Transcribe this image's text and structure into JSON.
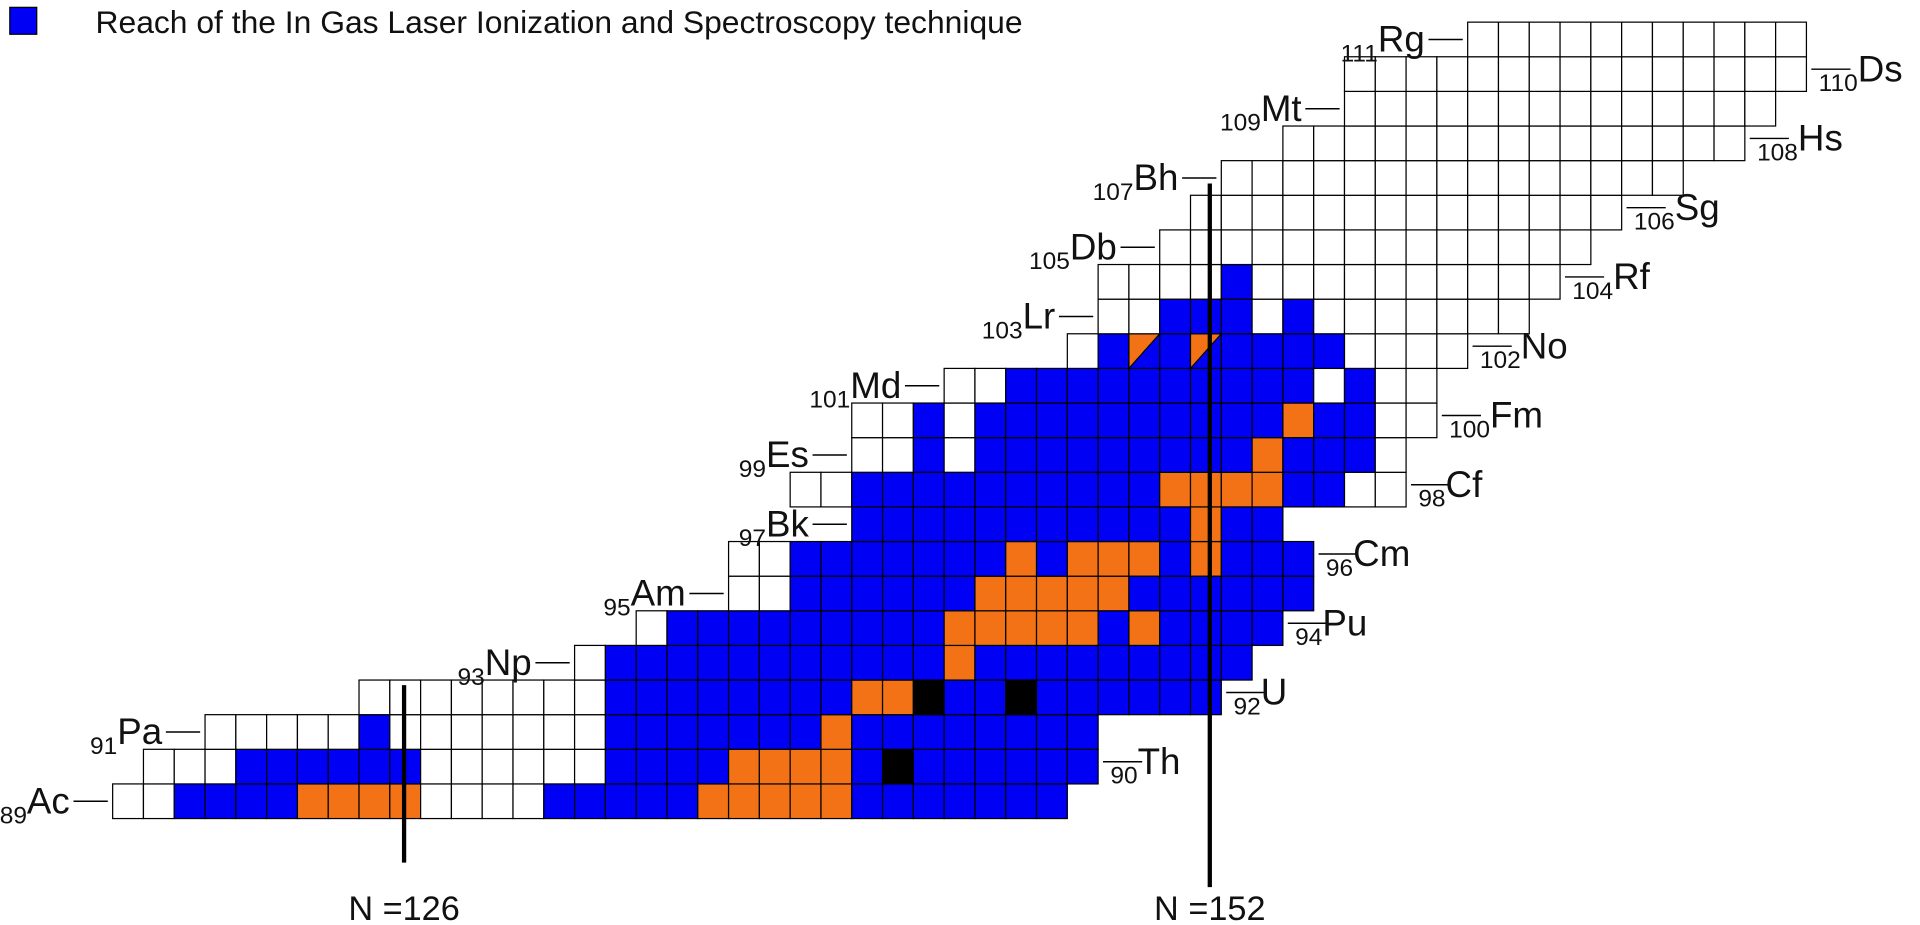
{
  "legend": {
    "label": "Reach of the In Gas Laser Ionization and Spectroscopy technique"
  },
  "elements": [
    {
      "z": 89,
      "symbol": "Ac"
    },
    {
      "z": 90,
      "symbol": "Th"
    },
    {
      "z": 91,
      "symbol": "Pa"
    },
    {
      "z": 92,
      "symbol": "U"
    },
    {
      "z": 93,
      "symbol": "Np"
    },
    {
      "z": 94,
      "symbol": "Pu"
    },
    {
      "z": 95,
      "symbol": "Am"
    },
    {
      "z": 96,
      "symbol": "Cm"
    },
    {
      "z": 97,
      "symbol": "Bk"
    },
    {
      "z": 98,
      "symbol": "Cf"
    },
    {
      "z": 99,
      "symbol": "Es"
    },
    {
      "z": 100,
      "symbol": "Fm"
    },
    {
      "z": 101,
      "symbol": "Md"
    },
    {
      "z": 102,
      "symbol": "No"
    },
    {
      "z": 103,
      "symbol": "Lr"
    },
    {
      "z": 104,
      "symbol": "Rf"
    },
    {
      "z": 105,
      "symbol": "Db"
    },
    {
      "z": 106,
      "symbol": "Sg"
    },
    {
      "z": 107,
      "symbol": "Bh"
    },
    {
      "z": 108,
      "symbol": "Hs"
    },
    {
      "z": 109,
      "symbol": "Mt"
    },
    {
      "z": 110,
      "symbol": "Ds"
    },
    {
      "z": 111,
      "symbol": "Rg"
    }
  ],
  "neutron_lines": [
    {
      "label": "N =126"
    },
    {
      "label": "N =152"
    }
  ]
}
